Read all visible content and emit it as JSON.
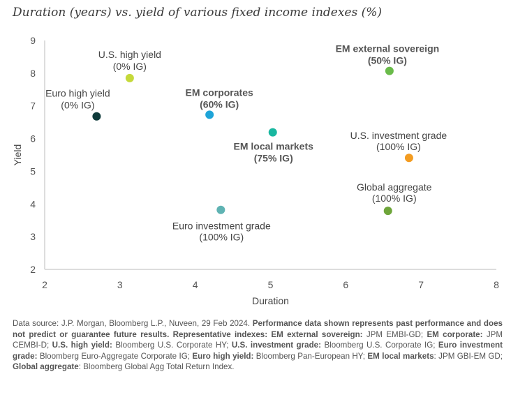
{
  "chart_data": {
    "type": "scatter",
    "title": "Duration (years) vs. yield of various fixed income indexes (%)",
    "xlabel": "Duration",
    "ylabel": "Yield",
    "xlim": [
      2,
      8
    ],
    "ylim": [
      2,
      9
    ],
    "xticks": [
      2,
      3,
      4,
      5,
      6,
      7,
      8
    ],
    "yticks": [
      2,
      3,
      4,
      5,
      6,
      7,
      8,
      9
    ],
    "grid": false,
    "points": [
      {
        "label": "U.S. high yield",
        "sublabel": "(0% IG)",
        "x": 3.13,
        "y": 7.85,
        "color": "#c5d93a",
        "bold": false
      },
      {
        "label": "Euro high yield",
        "sublabel": "(0% IG)",
        "x": 2.69,
        "y": 6.68,
        "color": "#0f3b3b",
        "bold": false
      },
      {
        "label": "EM corporates",
        "sublabel": "(60% IG)",
        "x": 4.19,
        "y": 6.73,
        "color": "#1ea4d8",
        "bold": true
      },
      {
        "label": "EM local markets",
        "sublabel": "(75% IG)",
        "x": 5.03,
        "y": 6.19,
        "color": "#19b7a0",
        "bold": true
      },
      {
        "label": "EM external sovereign",
        "sublabel": "(50% IG)",
        "x": 6.58,
        "y": 8.07,
        "color": "#6abb4a",
        "bold": true
      },
      {
        "label": "U.S. investment grade",
        "sublabel": "(100% IG)",
        "x": 6.84,
        "y": 5.41,
        "color": "#f39c21",
        "bold": false
      },
      {
        "label": "Global aggregate",
        "sublabel": "(100% IG)",
        "x": 6.56,
        "y": 3.79,
        "color": "#6ea53a",
        "bold": false
      },
      {
        "label": "Euro investment grade",
        "sublabel": "(100% IG)",
        "x": 4.34,
        "y": 3.82,
        "color": "#5fb3b3",
        "bold": false
      }
    ]
  },
  "footnote": {
    "segments": [
      {
        "b": false,
        "t": "Data source: J.P. Morgan, Bloomberg L.P., Nuveen, 29 Feb 2024. "
      },
      {
        "b": true,
        "t": "Performance data shown represents past performance and does not predict or guarantee future results. Representative indexes: EM external sovereign: "
      },
      {
        "b": false,
        "t": "JPM EMBI-GD; "
      },
      {
        "b": true,
        "t": "EM corporate: "
      },
      {
        "b": false,
        "t": "JPM CEMBI-D; "
      },
      {
        "b": true,
        "t": "U.S. high yield: "
      },
      {
        "b": false,
        "t": "Bloomberg U.S. Corporate HY; "
      },
      {
        "b": true,
        "t": "U.S. investment grade: "
      },
      {
        "b": false,
        "t": "Bloomberg U.S. Corporate IG; "
      },
      {
        "b": true,
        "t": "Euro investment grade: "
      },
      {
        "b": false,
        "t": "Bloomberg Euro-Aggregate Corporate IG; "
      },
      {
        "b": true,
        "t": "Euro high yield: "
      },
      {
        "b": false,
        "t": "Bloomberg Pan-European HY; "
      },
      {
        "b": true,
        "t": "EM local markets"
      },
      {
        "b": false,
        "t": ": JPM GBI-EM GD; "
      },
      {
        "b": true,
        "t": "Global aggregate"
      },
      {
        "b": false,
        "t": ": Bloomberg Global Agg Total Return Index."
      }
    ]
  }
}
